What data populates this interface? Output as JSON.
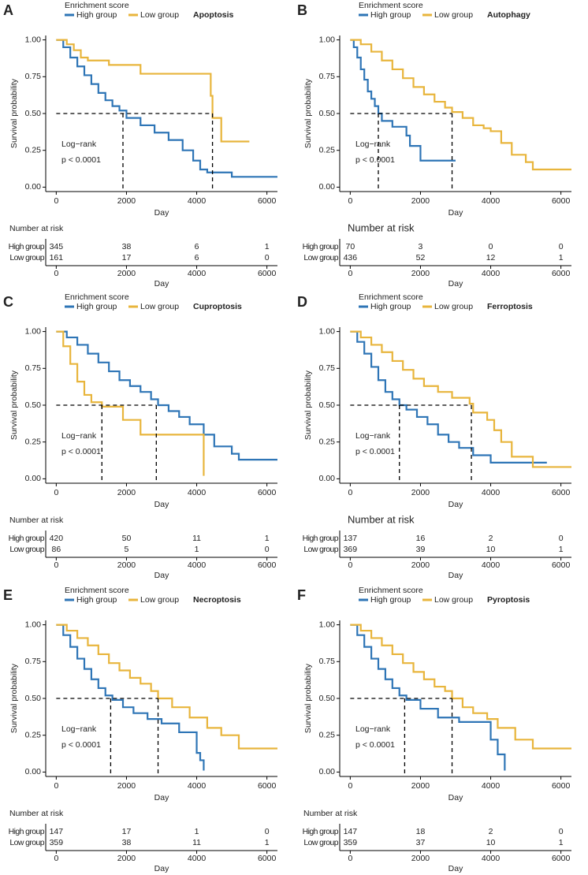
{
  "chart_data": [
    {
      "type": "line",
      "panel": "A",
      "title": "Apoptosis",
      "legend_title": "Enrichment score",
      "xlabel": "Day",
      "ylabel": "Survival probability",
      "annotation": [
        "Log−rank",
        "p < 0.0001"
      ],
      "xlim": [
        -300,
        6300
      ],
      "ylim": [
        -0.03,
        1.03
      ],
      "xticks": [
        0,
        2000,
        4000,
        6000
      ],
      "yticks": [
        {
          "value": 0,
          "label": "0.00"
        },
        {
          "value": 0.25,
          "label": "0.25"
        },
        {
          "value": 0.5,
          "label": "0.50"
        },
        {
          "value": 0.75,
          "label": "0.75"
        },
        {
          "value": 1,
          "label": "1.00"
        }
      ],
      "reference_level": 0.5,
      "series": [
        {
          "name": "High group",
          "color": "#2e75b6",
          "median": 1900,
          "x": [
            0,
            200,
            400,
            600,
            800,
            1000,
            1200,
            1400,
            1600,
            1800,
            2000,
            2400,
            2800,
            3200,
            3600,
            3900,
            4100,
            4300,
            5000,
            6300
          ],
          "values": [
            1,
            0.95,
            0.88,
            0.82,
            0.76,
            0.7,
            0.64,
            0.59,
            0.55,
            0.52,
            0.47,
            0.42,
            0.37,
            0.32,
            0.25,
            0.18,
            0.12,
            0.1,
            0.07,
            0.07
          ]
        },
        {
          "name": "Low group",
          "color": "#e8b53c",
          "median": 4450,
          "x": [
            0,
            300,
            500,
            700,
            900,
            1500,
            2400,
            4400,
            4450,
            4700,
            5500
          ],
          "values": [
            1,
            0.97,
            0.93,
            0.88,
            0.86,
            0.83,
            0.77,
            0.62,
            0.47,
            0.31,
            0.31
          ]
        }
      ],
      "risk_table": {
        "title": "Number at risk",
        "rows": [
          [
            345,
            38,
            6,
            1
          ],
          [
            161,
            17,
            6,
            0
          ]
        ]
      }
    },
    {
      "type": "line",
      "panel": "B",
      "title": "Autophagy",
      "legend_title": "Enrichment score",
      "xlabel": "Day",
      "ylabel": "Survival probability",
      "annotation": [
        "Log−rank",
        "p < 0.0001"
      ],
      "xlim": [
        -300,
        6300
      ],
      "ylim": [
        -0.03,
        1.03
      ],
      "xticks": [
        0,
        2000,
        4000,
        6000
      ],
      "yticks": [
        {
          "value": 0,
          "label": "0.00"
        },
        {
          "value": 0.25,
          "label": "0.25"
        },
        {
          "value": 0.5,
          "label": "0.50"
        },
        {
          "value": 0.75,
          "label": "0.75"
        },
        {
          "value": 1,
          "label": "1.00"
        }
      ],
      "reference_level": 0.5,
      "series": [
        {
          "name": "High group",
          "color": "#2e75b6",
          "median": 800,
          "x": [
            0,
            100,
            200,
            300,
            400,
            500,
            600,
            700,
            800,
            900,
            1200,
            1600,
            1700,
            2000,
            3000
          ],
          "values": [
            1,
            0.95,
            0.88,
            0.8,
            0.73,
            0.65,
            0.6,
            0.55,
            0.5,
            0.45,
            0.41,
            0.35,
            0.28,
            0.18,
            0.18
          ]
        },
        {
          "name": "Low group",
          "color": "#e8b53c",
          "median": 2900,
          "x": [
            0,
            300,
            600,
            900,
            1200,
            1500,
            1800,
            2100,
            2400,
            2700,
            2900,
            3200,
            3500,
            3800,
            4000,
            4300,
            4600,
            5000,
            5200,
            6300
          ],
          "values": [
            1,
            0.97,
            0.92,
            0.86,
            0.8,
            0.74,
            0.68,
            0.63,
            0.58,
            0.54,
            0.51,
            0.47,
            0.42,
            0.4,
            0.38,
            0.3,
            0.22,
            0.17,
            0.12,
            0.12
          ]
        }
      ],
      "risk_table": {
        "title": "Number at risk",
        "rows": [
          [
            70,
            3,
            0,
            0
          ],
          [
            436,
            52,
            12,
            1
          ]
        ]
      }
    },
    {
      "type": "line",
      "panel": "C",
      "title": "Cuproptosis",
      "legend_title": "Enrichment score",
      "xlabel": "Day",
      "ylabel": "Survival probability",
      "annotation": [
        "Log−rank",
        "p < 0.0001"
      ],
      "xlim": [
        -300,
        6300
      ],
      "ylim": [
        -0.03,
        1.03
      ],
      "xticks": [
        0,
        2000,
        4000,
        6000
      ],
      "yticks": [
        {
          "value": 0,
          "label": "0.00"
        },
        {
          "value": 0.25,
          "label": "0.25"
        },
        {
          "value": 0.5,
          "label": "0.50"
        },
        {
          "value": 0.75,
          "label": "0.75"
        },
        {
          "value": 1,
          "label": "1.00"
        }
      ],
      "reference_level": 0.5,
      "series": [
        {
          "name": "High group",
          "color": "#2e75b6",
          "median": 2850,
          "x": [
            0,
            300,
            600,
            900,
            1200,
            1500,
            1800,
            2100,
            2400,
            2700,
            2900,
            3200,
            3500,
            3800,
            4200,
            4500,
            5000,
            5200,
            6300
          ],
          "values": [
            1,
            0.96,
            0.91,
            0.85,
            0.79,
            0.73,
            0.67,
            0.63,
            0.59,
            0.54,
            0.5,
            0.46,
            0.42,
            0.37,
            0.3,
            0.22,
            0.17,
            0.13,
            0.13
          ]
        },
        {
          "name": "Low group",
          "color": "#e8b53c",
          "median": 1300,
          "x": [
            0,
            200,
            400,
            600,
            800,
            1000,
            1300,
            1900,
            2400,
            4100,
            4200
          ],
          "values": [
            1,
            0.9,
            0.78,
            0.66,
            0.57,
            0.52,
            0.49,
            0.4,
            0.3,
            0.3,
            0.02
          ]
        }
      ],
      "risk_table": {
        "title": "Number at risk",
        "rows": [
          [
            420,
            50,
            11,
            1
          ],
          [
            86,
            5,
            1,
            0
          ]
        ]
      }
    },
    {
      "type": "line",
      "panel": "D",
      "title": "Ferroptosis",
      "legend_title": "Enrichment score",
      "xlabel": "Day",
      "ylabel": "Survival probability",
      "annotation": [
        "Log−rank",
        "p < 0.0001"
      ],
      "xlim": [
        -300,
        6300
      ],
      "ylim": [
        -0.03,
        1.03
      ],
      "xticks": [
        0,
        2000,
        4000,
        6000
      ],
      "yticks": [
        {
          "value": 0,
          "label": "0.00"
        },
        {
          "value": 0.25,
          "label": "0.25"
        },
        {
          "value": 0.5,
          "label": "0.50"
        },
        {
          "value": 0.75,
          "label": "0.75"
        },
        {
          "value": 1,
          "label": "1.00"
        }
      ],
      "reference_level": 0.5,
      "series": [
        {
          "name": "High group",
          "color": "#2e75b6",
          "median": 1400,
          "x": [
            0,
            200,
            400,
            600,
            800,
            1000,
            1200,
            1400,
            1600,
            1900,
            2200,
            2500,
            2800,
            3100,
            3500,
            4000,
            4800,
            5600
          ],
          "values": [
            1,
            0.93,
            0.85,
            0.76,
            0.67,
            0.59,
            0.54,
            0.5,
            0.47,
            0.42,
            0.37,
            0.3,
            0.25,
            0.21,
            0.16,
            0.11,
            0.11,
            0.11
          ]
        },
        {
          "name": "Low group",
          "color": "#e8b53c",
          "median": 3450,
          "x": [
            0,
            300,
            600,
            900,
            1200,
            1500,
            1800,
            2100,
            2500,
            2900,
            3400,
            3500,
            3900,
            4100,
            4300,
            4600,
            5200,
            6300
          ],
          "values": [
            1,
            0.96,
            0.91,
            0.86,
            0.8,
            0.74,
            0.68,
            0.63,
            0.59,
            0.55,
            0.51,
            0.45,
            0.4,
            0.33,
            0.25,
            0.15,
            0.08,
            0.08
          ]
        }
      ],
      "risk_table": {
        "title": "Number at risk",
        "rows": [
          [
            137,
            16,
            2,
            0
          ],
          [
            369,
            39,
            10,
            1
          ]
        ]
      }
    },
    {
      "type": "line",
      "panel": "E",
      "title": "Necroptosis",
      "legend_title": "Enrichment score",
      "xlabel": "Day",
      "ylabel": "Survival probability",
      "annotation": [
        "Log−rank",
        "p < 0.0001"
      ],
      "xlim": [
        -300,
        6300
      ],
      "ylim": [
        -0.03,
        1.03
      ],
      "xticks": [
        0,
        2000,
        4000,
        6000
      ],
      "yticks": [
        {
          "value": 0,
          "label": "0.00"
        },
        {
          "value": 0.25,
          "label": "0.25"
        },
        {
          "value": 0.5,
          "label": "0.50"
        },
        {
          "value": 0.75,
          "label": "0.75"
        },
        {
          "value": 1,
          "label": "1.00"
        }
      ],
      "reference_level": 0.5,
      "series": [
        {
          "name": "High group",
          "color": "#2e75b6",
          "median": 1550,
          "x": [
            0,
            200,
            400,
            600,
            800,
            1000,
            1200,
            1400,
            1600,
            1900,
            2200,
            2600,
            3000,
            3500,
            4000,
            4100,
            4200
          ],
          "values": [
            1,
            0.93,
            0.85,
            0.77,
            0.7,
            0.63,
            0.57,
            0.52,
            0.49,
            0.44,
            0.4,
            0.36,
            0.33,
            0.27,
            0.13,
            0.08,
            0.01
          ]
        },
        {
          "name": "Low group",
          "color": "#e8b53c",
          "median": 2900,
          "x": [
            0,
            300,
            600,
            900,
            1200,
            1500,
            1800,
            2100,
            2400,
            2700,
            2900,
            3300,
            3800,
            4300,
            4700,
            5200,
            6300
          ],
          "values": [
            1,
            0.96,
            0.91,
            0.86,
            0.8,
            0.74,
            0.69,
            0.64,
            0.6,
            0.55,
            0.5,
            0.44,
            0.37,
            0.3,
            0.25,
            0.16,
            0.16
          ]
        }
      ],
      "risk_table": {
        "title": "Number at risk",
        "rows": [
          [
            147,
            17,
            1,
            0
          ],
          [
            359,
            38,
            11,
            1
          ]
        ]
      }
    },
    {
      "type": "line",
      "panel": "F",
      "title": "Pyroptosis",
      "legend_title": "Enrichment score",
      "xlabel": "Day",
      "ylabel": "Survival probability",
      "annotation": [
        "Log−rank",
        "p < 0.0001"
      ],
      "xlim": [
        -300,
        6300
      ],
      "ylim": [
        -0.03,
        1.03
      ],
      "xticks": [
        0,
        2000,
        4000,
        6000
      ],
      "yticks": [
        {
          "value": 0,
          "label": "0.00"
        },
        {
          "value": 0.25,
          "label": "0.25"
        },
        {
          "value": 0.5,
          "label": "0.50"
        },
        {
          "value": 0.75,
          "label": "0.75"
        },
        {
          "value": 1,
          "label": "1.00"
        }
      ],
      "reference_level": 0.5,
      "series": [
        {
          "name": "High group",
          "color": "#2e75b6",
          "median": 1550,
          "x": [
            0,
            200,
            400,
            600,
            800,
            1000,
            1200,
            1400,
            1600,
            2000,
            2500,
            3100,
            3800,
            4000,
            4200,
            4400
          ],
          "values": [
            1,
            0.93,
            0.85,
            0.77,
            0.7,
            0.63,
            0.57,
            0.52,
            0.49,
            0.43,
            0.37,
            0.34,
            0.34,
            0.22,
            0.12,
            0.01
          ]
        },
        {
          "name": "Low group",
          "color": "#e8b53c",
          "median": 2900,
          "x": [
            0,
            300,
            600,
            900,
            1200,
            1500,
            1800,
            2100,
            2400,
            2700,
            2900,
            3200,
            3500,
            3900,
            4200,
            4700,
            5200,
            6300
          ],
          "values": [
            1,
            0.96,
            0.91,
            0.86,
            0.8,
            0.74,
            0.68,
            0.63,
            0.58,
            0.55,
            0.5,
            0.44,
            0.4,
            0.36,
            0.3,
            0.22,
            0.16,
            0.16
          ]
        }
      ],
      "risk_table": {
        "title": "Number at risk",
        "rows": [
          [
            147,
            18,
            2,
            0
          ],
          [
            359,
            37,
            10,
            1
          ]
        ]
      }
    }
  ]
}
